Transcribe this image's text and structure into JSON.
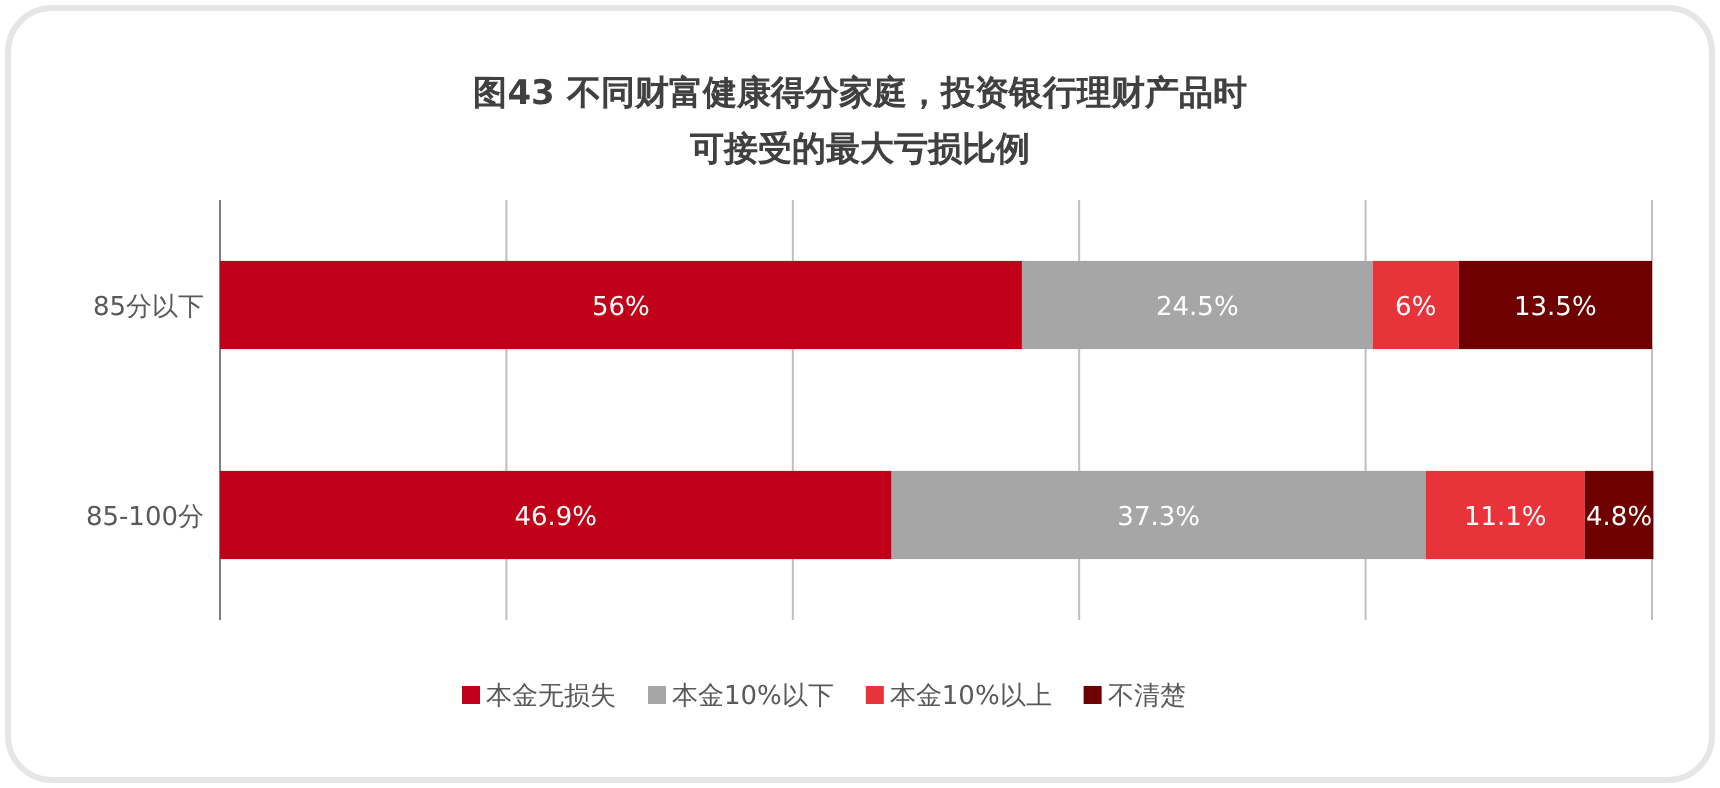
{
  "chart_data": {
    "type": "bar",
    "orientation": "horizontal",
    "stacked": true,
    "title": "图43 不同财富健康得分家庭，投资银行理财产品时可接受的最大亏损比例",
    "categories": [
      "85分以下",
      "85-100分"
    ],
    "series": [
      {
        "name": "本金无损失",
        "color": "#c00018",
        "values": [
          56,
          46.9
        ],
        "value_labels": [
          "56%",
          "46.9%"
        ]
      },
      {
        "name": "本金10%以下",
        "color": "#a6a6a6",
        "values": [
          24.5,
          37.3
        ],
        "value_labels": [
          "24.5%",
          "37.3%"
        ]
      },
      {
        "name": "本金10%以上",
        "color": "#e8333b",
        "values": [
          6,
          11.1
        ],
        "value_labels": [
          "6%",
          "11.1%"
        ]
      },
      {
        "name": "不清楚",
        "color": "#6e0000",
        "values": [
          13.5,
          4.8
        ],
        "value_labels": [
          "13.5%",
          "4.8%"
        ]
      }
    ],
    "xlim": [
      0,
      100
    ],
    "xticks": [
      {
        "value": 0,
        "label": null
      },
      {
        "value": 20,
        "label": null
      },
      {
        "value": 40,
        "label": null
      },
      {
        "value": 60,
        "label": null
      },
      {
        "value": 80,
        "label": null
      },
      {
        "value": 100,
        "label": null
      }
    ],
    "grid": "x",
    "legend": "bottom",
    "tick_labels": "y"
  }
}
